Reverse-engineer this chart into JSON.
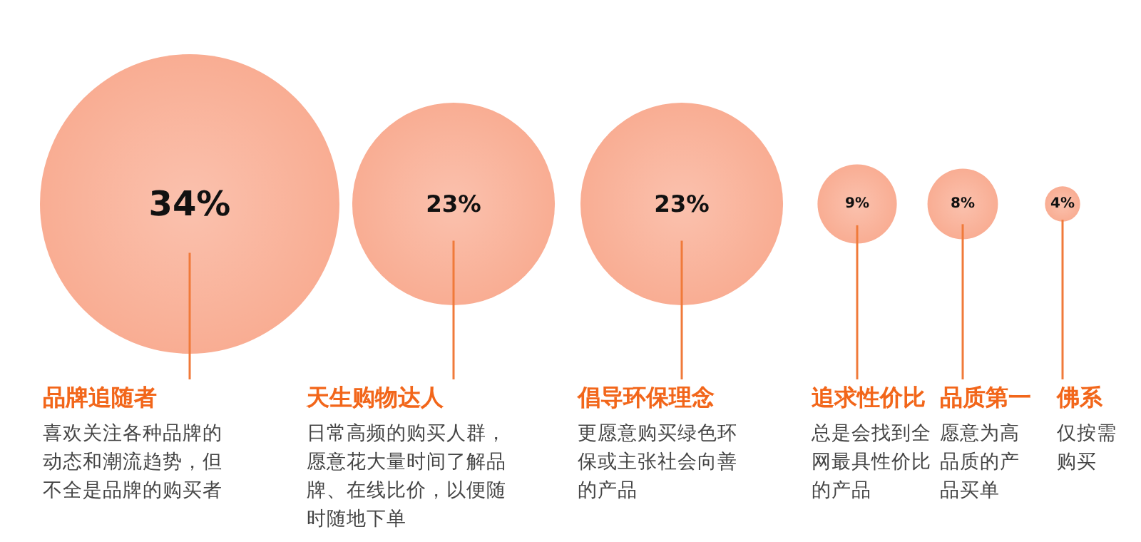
{
  "chart_data": {
    "type": "other",
    "categories": [
      "品牌追随者",
      "天生购物达人",
      "倡导环保理念",
      "追求性价比",
      "品质第一",
      "佛系"
    ],
    "values": [
      34,
      23,
      23,
      9,
      8,
      4
    ],
    "value_labels": [
      "34%",
      "23%",
      "23%",
      "9%",
      "8%",
      "4%"
    ],
    "color": "#f9ad93",
    "annotations": [
      "喜欢关注各种品牌的动态和潮流趋势，但不全是品牌的购买者",
      "日常高频的购买人群，愿意花大量时间了解品牌、在线比价，以便随时随地下单",
      "更愿意购买绿色环保或主张社会向善的产品",
      "总是会找到全网最具性价比的产品",
      "愿意为高品质的产品买单",
      "仅按需购买"
    ]
  }
}
